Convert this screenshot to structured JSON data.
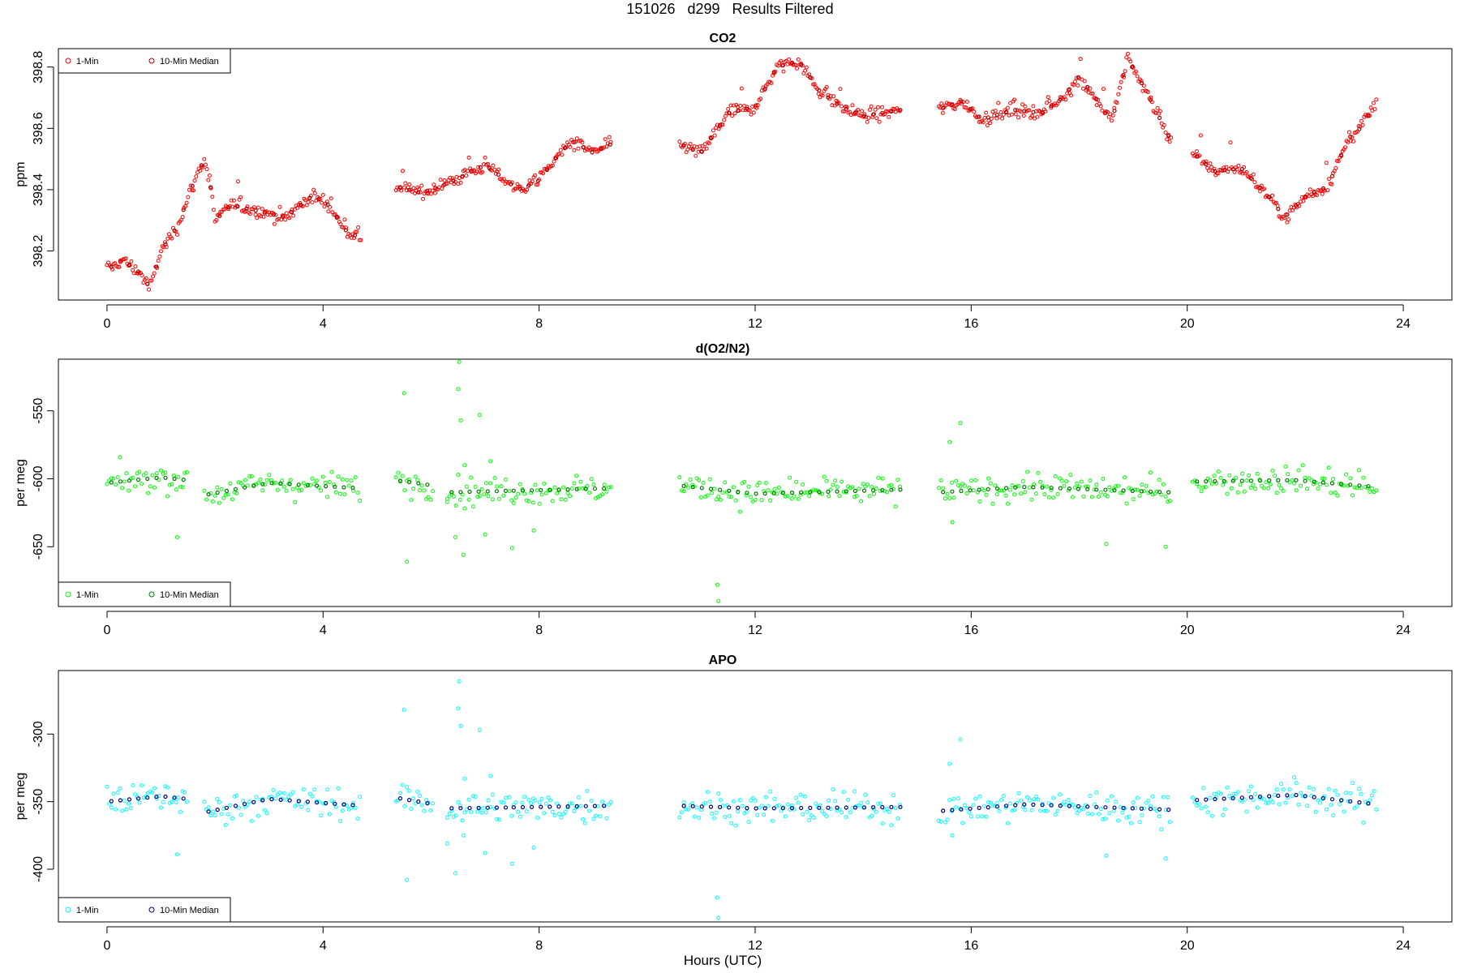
{
  "figure": {
    "suptitle": "151026   d299   Results Filtered",
    "xlabel": "Hours (UTC)"
  },
  "chart_data": [
    {
      "type": "scatter",
      "title": "CO2",
      "ylabel": "ppm",
      "xlim": [
        -0.9,
        24.9
      ],
      "ylim": [
        398.04,
        398.86
      ],
      "xticks": [
        0,
        4,
        8,
        12,
        16,
        20,
        24
      ],
      "yticks": [
        398.2,
        398.4,
        398.6,
        398.8
      ],
      "legend": {
        "position": "top-left",
        "entries": [
          "1-Min",
          "10-Min Median"
        ]
      },
      "colors": {
        "one_min": "#ff0000",
        "median": "#aa0000"
      },
      "segments": [
        [
          0.0,
          4.7
        ],
        [
          5.35,
          6.0
        ],
        [
          6.0,
          7.4
        ],
        [
          7.4,
          9.35
        ],
        [
          10.6,
          14.7
        ],
        [
          15.4,
          19.7
        ],
        [
          20.1,
          23.5
        ]
      ],
      "trend": {
        "x": [
          0.0,
          0.3,
          0.6,
          0.8,
          1.0,
          1.3,
          1.6,
          1.8,
          1.9,
          2.0,
          2.3,
          2.8,
          3.3,
          3.8,
          4.1,
          4.4,
          4.7,
          5.35,
          5.8,
          6.0,
          6.3,
          7.0,
          7.4,
          7.6,
          8.0,
          8.3,
          8.6,
          9.0,
          9.35,
          10.6,
          11.0,
          11.5,
          12.0,
          12.4,
          12.8,
          13.2,
          13.6,
          14.0,
          14.7,
          15.4,
          15.8,
          16.2,
          16.8,
          17.3,
          17.7,
          18.0,
          18.3,
          18.6,
          18.9,
          19.3,
          19.7,
          20.1,
          20.5,
          21.0,
          21.5,
          21.8,
          22.2,
          22.6,
          23.0,
          23.2,
          23.5
        ],
        "y": [
          398.14,
          398.17,
          398.13,
          398.08,
          398.2,
          398.28,
          398.42,
          398.5,
          398.43,
          398.3,
          398.35,
          398.33,
          398.31,
          398.38,
          398.35,
          398.27,
          398.24,
          398.41,
          398.39,
          398.4,
          398.42,
          398.48,
          398.43,
          398.4,
          398.43,
          398.5,
          398.56,
          398.52,
          398.55,
          398.55,
          398.52,
          398.65,
          398.67,
          398.8,
          398.82,
          398.72,
          398.67,
          398.64,
          398.66,
          398.66,
          398.69,
          398.63,
          398.66,
          398.65,
          398.7,
          398.77,
          398.7,
          398.62,
          398.83,
          398.7,
          398.56,
          398.52,
          398.46,
          398.47,
          398.38,
          398.31,
          398.38,
          398.41,
          398.57,
          398.6,
          398.68
        ]
      },
      "spread": 0.025
    },
    {
      "type": "scatter",
      "title": "d(O2/N2)",
      "ylabel": "per meg",
      "xlim": [
        -0.9,
        24.9
      ],
      "ylim": [
        -694,
        -512
      ],
      "xticks": [
        0,
        4,
        8,
        12,
        16,
        20,
        24
      ],
      "yticks": [
        -650,
        -600,
        -550
      ],
      "legend": {
        "position": "bottom-left",
        "entries": [
          "1-Min",
          "10-Min Median"
        ]
      },
      "colors": {
        "one_min": "#00ff00",
        "median": "#007700"
      },
      "segments": [
        [
          0.0,
          1.5
        ],
        [
          1.8,
          4.7
        ],
        [
          5.35,
          6.05
        ],
        [
          6.3,
          7.4
        ],
        [
          7.45,
          9.35
        ],
        [
          10.6,
          14.7
        ],
        [
          15.4,
          19.7
        ],
        [
          20.1,
          23.5
        ]
      ],
      "trend": {
        "x": [
          0.0,
          1.0,
          1.5,
          1.8,
          3.0,
          4.7,
          5.35,
          6.05,
          6.3,
          9.35,
          10.6,
          12.0,
          14.7,
          15.4,
          17.0,
          19.7,
          20.1,
          22.0,
          23.5
        ],
        "y": [
          -603,
          -599,
          -601,
          -612,
          -603,
          -607,
          -601,
          -605,
          -610,
          -607,
          -605,
          -611,
          -608,
          -610,
          -606,
          -610,
          -602,
          -601,
          -606
        ]
      },
      "spread": 8,
      "outliers": {
        "x": [
          5.5,
          5.55,
          6.3,
          6.45,
          6.5,
          6.52,
          6.55,
          6.6,
          6.62,
          6.9,
          7.0,
          7.1,
          1.3,
          11.3,
          11.32,
          15.6,
          15.65,
          15.8,
          18.5,
          19.6,
          7.5,
          7.9
        ],
        "y": [
          -537,
          -661,
          -617,
          -643,
          -534,
          -514,
          -557,
          -656,
          -590,
          -553,
          -641,
          -587,
          -643,
          -678,
          -690,
          -573,
          -632,
          -559,
          -648,
          -650,
          -651,
          -638
        ]
      }
    },
    {
      "type": "scatter",
      "title": "APO",
      "ylabel": "per meg",
      "xlim": [
        -0.9,
        24.9
      ],
      "ylim": [
        -439,
        -253
      ],
      "xticks": [
        0,
        4,
        8,
        12,
        16,
        20,
        24
      ],
      "yticks": [
        -400,
        -350,
        -300
      ],
      "legend": {
        "position": "bottom-left",
        "entries": [
          "1-Min",
          "10-Min Median"
        ]
      },
      "colors": {
        "one_min": "#00ffff",
        "median": "#00007f"
      },
      "segments": [
        [
          0.0,
          1.5
        ],
        [
          1.8,
          4.7
        ],
        [
          5.35,
          6.05
        ],
        [
          6.3,
          7.4
        ],
        [
          7.45,
          9.35
        ],
        [
          10.6,
          14.7
        ],
        [
          15.4,
          19.7
        ],
        [
          20.1,
          23.5
        ]
      ],
      "trend": {
        "x": [
          0.0,
          1.0,
          1.5,
          1.8,
          3.0,
          4.7,
          5.35,
          6.05,
          6.3,
          9.35,
          10.6,
          12.0,
          14.7,
          15.4,
          17.0,
          19.7,
          20.1,
          22.0,
          23.5
        ],
        "y": [
          -350,
          -346,
          -348,
          -358,
          -348,
          -353,
          -347,
          -352,
          -355,
          -353,
          -353,
          -355,
          -354,
          -357,
          -352,
          -356,
          -349,
          -345,
          -352
        ]
      },
      "spread": 9,
      "outliers": {
        "x": [
          5.5,
          5.55,
          6.3,
          6.45,
          6.5,
          6.52,
          6.55,
          6.6,
          6.62,
          6.9,
          7.0,
          7.1,
          1.3,
          11.3,
          11.32,
          15.6,
          15.65,
          15.8,
          18.5,
          19.6,
          7.5,
          7.9
        ],
        "y": [
          -282,
          -408,
          -381,
          -403,
          -281,
          -261,
          -294,
          -375,
          -333,
          -297,
          -388,
          -331,
          -389,
          -421,
          -436,
          -322,
          -375,
          -304,
          -390,
          -392,
          -396,
          -384
        ]
      }
    }
  ]
}
